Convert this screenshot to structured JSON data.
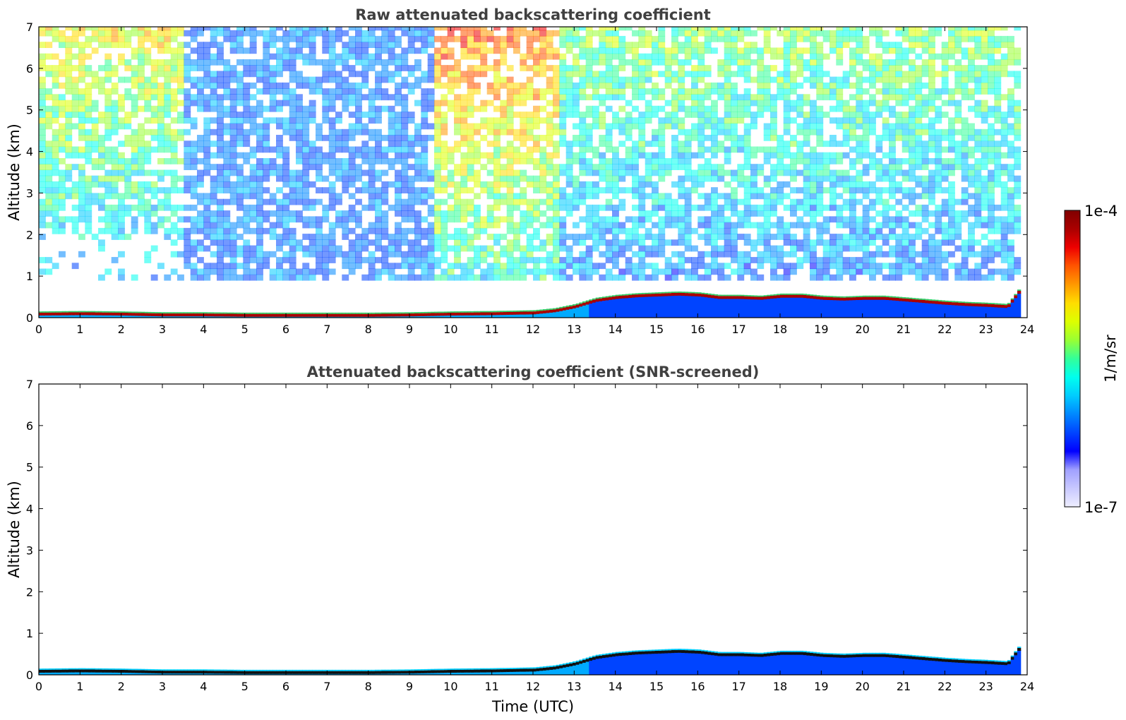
{
  "chart_data": [
    {
      "type": "heatmap",
      "title": "Raw attenuated backscattering coefficient",
      "xlabel": "",
      "ylabel": "Altitude (km)",
      "xlim": [
        0,
        24
      ],
      "ylim": [
        0,
        7
      ],
      "xticks": [
        "0",
        "1",
        "2",
        "3",
        "4",
        "5",
        "6",
        "7",
        "8",
        "9",
        "10",
        "11",
        "12",
        "13",
        "14",
        "15",
        "16",
        "17",
        "18",
        "19",
        "20",
        "21",
        "22",
        "23",
        "24"
      ],
      "yticks": [
        "0",
        "1",
        "2",
        "3",
        "4",
        "5",
        "6",
        "7"
      ],
      "layer_top_km": [
        [
          0,
          0.12
        ],
        [
          1,
          0.13
        ],
        [
          2,
          0.12
        ],
        [
          3,
          0.1
        ],
        [
          4,
          0.1
        ],
        [
          5,
          0.09
        ],
        [
          6,
          0.09
        ],
        [
          7,
          0.09
        ],
        [
          8,
          0.09
        ],
        [
          9,
          0.1
        ],
        [
          10,
          0.12
        ],
        [
          11,
          0.13
        ],
        [
          12,
          0.15
        ],
        [
          12.5,
          0.2
        ],
        [
          13,
          0.3
        ],
        [
          13.5,
          0.45
        ],
        [
          14,
          0.52
        ],
        [
          14.5,
          0.56
        ],
        [
          15,
          0.58
        ],
        [
          15.5,
          0.6
        ],
        [
          16,
          0.58
        ],
        [
          16.5,
          0.52
        ],
        [
          17,
          0.52
        ],
        [
          17.5,
          0.5
        ],
        [
          18,
          0.55
        ],
        [
          18.5,
          0.55
        ],
        [
          19,
          0.5
        ],
        [
          19.5,
          0.48
        ],
        [
          20,
          0.5
        ],
        [
          20.5,
          0.5
        ],
        [
          21,
          0.46
        ],
        [
          21.5,
          0.42
        ],
        [
          22,
          0.38
        ],
        [
          22.5,
          0.35
        ],
        [
          23,
          0.33
        ],
        [
          23.5,
          0.3
        ],
        [
          23.8,
          0.7
        ]
      ],
      "background": "noise"
    },
    {
      "type": "heatmap",
      "title": "Attenuated backscattering coefficient (SNR-screened)",
      "xlabel": "Time (UTC)",
      "ylabel": "Altitude (km)",
      "xlim": [
        0,
        24
      ],
      "ylim": [
        0,
        7
      ],
      "xticks": [
        "0",
        "1",
        "2",
        "3",
        "4",
        "5",
        "6",
        "7",
        "8",
        "9",
        "10",
        "11",
        "12",
        "13",
        "14",
        "15",
        "16",
        "17",
        "18",
        "19",
        "20",
        "21",
        "22",
        "23",
        "24"
      ],
      "yticks": [
        "0",
        "1",
        "2",
        "3",
        "4",
        "5",
        "6",
        "7"
      ],
      "layer_top_km": [
        [
          0,
          0.12
        ],
        [
          1,
          0.13
        ],
        [
          2,
          0.12
        ],
        [
          3,
          0.1
        ],
        [
          4,
          0.1
        ],
        [
          5,
          0.09
        ],
        [
          6,
          0.09
        ],
        [
          7,
          0.09
        ],
        [
          8,
          0.09
        ],
        [
          9,
          0.1
        ],
        [
          10,
          0.12
        ],
        [
          11,
          0.13
        ],
        [
          12,
          0.15
        ],
        [
          12.5,
          0.2
        ],
        [
          13,
          0.3
        ],
        [
          13.5,
          0.45
        ],
        [
          14,
          0.52
        ],
        [
          14.5,
          0.56
        ],
        [
          15,
          0.58
        ],
        [
          15.5,
          0.6
        ],
        [
          16,
          0.58
        ],
        [
          16.5,
          0.52
        ],
        [
          17,
          0.52
        ],
        [
          17.5,
          0.5
        ],
        [
          18,
          0.55
        ],
        [
          18.5,
          0.55
        ],
        [
          19,
          0.5
        ],
        [
          19.5,
          0.48
        ],
        [
          20,
          0.5
        ],
        [
          20.5,
          0.5
        ],
        [
          21,
          0.46
        ],
        [
          21.5,
          0.42
        ],
        [
          22,
          0.38
        ],
        [
          22.5,
          0.35
        ],
        [
          23,
          0.33
        ],
        [
          23.5,
          0.3
        ],
        [
          23.8,
          0.7
        ]
      ],
      "background": "none"
    }
  ],
  "colorbar": {
    "max_label": "1e-4",
    "min_label": "1e-7",
    "units": "1/m/sr",
    "colormap": "jet",
    "colors": [
      "#eeeeff",
      "#c8c8ff",
      "#a0a0ff",
      "#0000ff",
      "#0044ff",
      "#0088ff",
      "#00ccff",
      "#00ffee",
      "#33ff99",
      "#99ff33",
      "#ddff00",
      "#ffdd00",
      "#ff9900",
      "#ff5500",
      "#ee0000",
      "#aa0000",
      "#800000"
    ]
  }
}
